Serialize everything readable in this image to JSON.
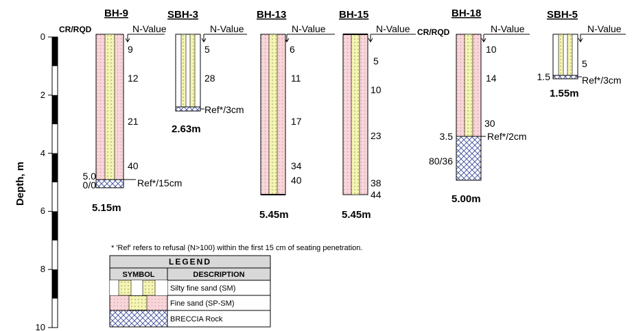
{
  "axis": {
    "label": "Depth, m",
    "ticks": [
      "0",
      "2",
      "4",
      "6",
      "8",
      "10"
    ]
  },
  "headers": {
    "cr_rqd": "CR/RQD",
    "n_value": "N-Value"
  },
  "boreholes": [
    {
      "name": "BH-9",
      "total": "5.15m",
      "n_values": [
        "9",
        "12",
        "21",
        "40"
      ],
      "refusal": "Ref*/15cm",
      "interface_depth": "5.0",
      "cr_rqd": "0/0"
    },
    {
      "name": "SBH-3",
      "total": "2.63m",
      "n_values": [
        "5",
        "28"
      ],
      "refusal": "Ref*/3cm"
    },
    {
      "name": "BH-13",
      "total": "5.45m",
      "n_values": [
        "6",
        "11",
        "17",
        "34",
        "40"
      ]
    },
    {
      "name": "BH-15",
      "total": "5.45m",
      "n_values": [
        "5",
        "10",
        "23",
        "38",
        "44"
      ]
    },
    {
      "name": "BH-18",
      "total": "5.00m",
      "n_values": [
        "10",
        "14",
        "30"
      ],
      "refusal": "Ref*/2cm",
      "interface_depth": "3.5",
      "cr_rqd": "80/36"
    },
    {
      "name": "SBH-5",
      "total": "1.55m",
      "n_values": [
        "5"
      ],
      "refusal": "Ref*/3cm",
      "interface_depth": "1.5"
    }
  ],
  "note": "* 'Ref'  refers to refusal (N>100) within the first 15 cm of seating penetration.",
  "legend": {
    "title": "LEGEND",
    "col_symbol": "SYMBOL",
    "col_description": "DESCRIPTION",
    "items": [
      {
        "description": "Silty fine sand (SM)",
        "symbol": "silty-fine-sand"
      },
      {
        "description": "Fine sand (SP-SM)",
        "symbol": "fine-sand"
      },
      {
        "description": "BRECCIA Rock",
        "symbol": "breccia-rock"
      }
    ]
  },
  "colors": {
    "fine_sand": "#f7d6da",
    "silty_sand": "#f4f4b4",
    "breccia": "#3a4a9a"
  }
}
